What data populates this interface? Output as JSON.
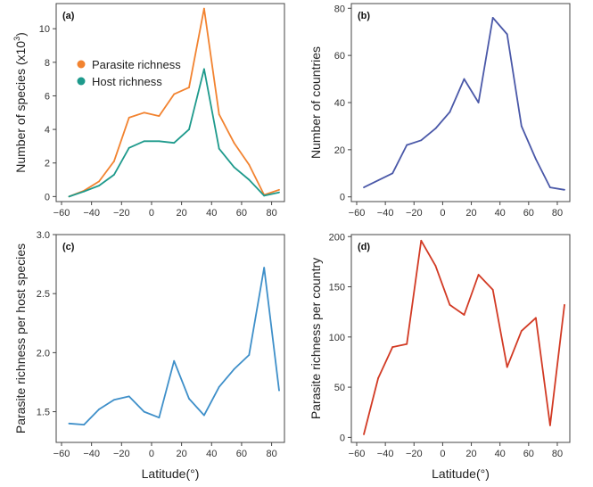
{
  "chart_data": [
    {
      "panel": "(a)",
      "type": "line",
      "ylabel": "Number of species  (x10",
      "ylabel_sup": "3",
      "ylabel_close": ")",
      "xlabel": "",
      "xlim": [
        -60,
        85
      ],
      "ylim": [
        -0.3,
        11.5
      ],
      "x_ticks": [
        -60,
        -40,
        -20,
        0,
        20,
        40,
        60,
        80
      ],
      "y_ticks": [
        0,
        2,
        4,
        6,
        8,
        10
      ],
      "legend": "top-left",
      "series": [
        {
          "name": "Parasite richness",
          "color": "#f28330",
          "x": [
            -55,
            -45,
            -35,
            -25,
            -15,
            -5,
            5,
            15,
            25,
            35,
            45,
            55,
            65,
            75,
            85
          ],
          "y": [
            0,
            0.35,
            0.9,
            2.1,
            4.7,
            5.0,
            4.8,
            6.1,
            6.5,
            11.2,
            4.9,
            3.2,
            1.9,
            0.1,
            0.4
          ]
        },
        {
          "name": "Host richness",
          "color": "#1e9a8c",
          "x": [
            -55,
            -45,
            -35,
            -25,
            -15,
            -5,
            5,
            15,
            25,
            35,
            45,
            55,
            65,
            75,
            85
          ],
          "y": [
            0,
            0.3,
            0.65,
            1.3,
            2.9,
            3.3,
            3.3,
            3.2,
            4.0,
            7.6,
            2.85,
            1.75,
            1.0,
            0.05,
            0.25
          ]
        }
      ]
    },
    {
      "panel": "(b)",
      "type": "line",
      "ylabel": "Number of countries",
      "xlabel": "",
      "xlim": [
        -60,
        85
      ],
      "ylim": [
        -2,
        82
      ],
      "x_ticks": [
        -60,
        -40,
        -20,
        0,
        20,
        40,
        60,
        80
      ],
      "y_ticks": [
        0,
        20,
        40,
        60,
        80
      ],
      "series": [
        {
          "color": "#4a58a8",
          "x": [
            -55,
            -45,
            -35,
            -25,
            -15,
            -5,
            5,
            15,
            25,
            35,
            45,
            55,
            65,
            75,
            85
          ],
          "y": [
            4,
            7,
            10,
            22,
            24,
            29,
            36,
            50,
            40,
            76,
            69,
            30,
            16,
            4,
            3
          ]
        }
      ]
    },
    {
      "panel": "(c)",
      "type": "line",
      "ylabel": "Parasite richness per host species",
      "xlabel": "Latitude(°)",
      "xlim": [
        -60,
        85
      ],
      "ylim": [
        1.24,
        3.0
      ],
      "x_ticks": [
        -60,
        -40,
        -20,
        0,
        20,
        40,
        60,
        80
      ],
      "y_ticks": [
        1.5,
        2.0,
        2.5,
        3.0
      ],
      "y_tick_labels": [
        "1.5",
        "2.0",
        "2.5",
        "3.0"
      ],
      "series": [
        {
          "color": "#3e8fc9",
          "x": [
            -55,
            -45,
            -35,
            -25,
            -15,
            -5,
            5,
            15,
            25,
            35,
            45,
            55,
            65,
            75,
            85
          ],
          "y": [
            1.4,
            1.39,
            1.52,
            1.6,
            1.63,
            1.5,
            1.45,
            1.93,
            1.61,
            1.47,
            1.71,
            1.86,
            1.98,
            2.72,
            1.68
          ]
        }
      ]
    },
    {
      "panel": "(d)",
      "type": "line",
      "ylabel": "Parasite richness per country",
      "xlabel": "Latitude(°)",
      "xlim": [
        -60,
        85
      ],
      "ylim": [
        -5,
        202
      ],
      "x_ticks": [
        -60,
        -40,
        -20,
        0,
        20,
        40,
        60,
        80
      ],
      "y_ticks": [
        0,
        50,
        100,
        150,
        200
      ],
      "series": [
        {
          "color": "#d23a24",
          "x": [
            -55,
            -45,
            -35,
            -25,
            -15,
            -5,
            5,
            15,
            25,
            35,
            45,
            55,
            65,
            75,
            85
          ],
          "y": [
            3,
            59,
            90,
            93,
            196,
            171,
            132,
            122,
            162,
            147,
            70,
            106,
            119,
            12,
            132
          ]
        }
      ]
    }
  ]
}
